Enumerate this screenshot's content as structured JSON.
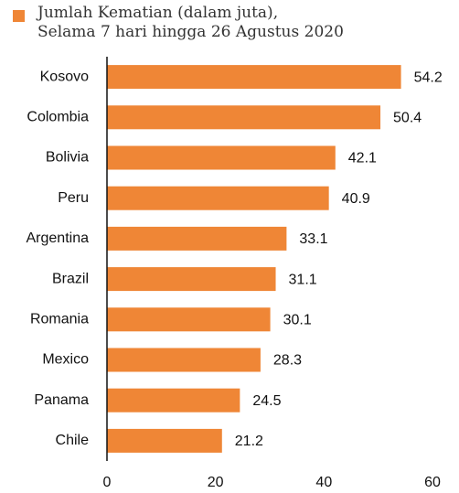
{
  "chart_data": {
    "type": "bar",
    "orientation": "horizontal",
    "categories": [
      "Kosovo",
      "Colombia",
      "Bolivia",
      "Peru",
      "Argentina",
      "Brazil",
      "Romania",
      "Mexico",
      "Panama",
      "Chile"
    ],
    "series": [
      {
        "name": "Jumlah Kematian (dalam juta),\nSelama 7 hari hingga 26 Agustus 2020",
        "color": "#ef8636",
        "values": [
          54.2,
          50.4,
          42.1,
          40.9,
          33.1,
          31.1,
          30.1,
          28.3,
          24.5,
          21.2
        ]
      }
    ],
    "xlim": [
      0,
      60
    ],
    "xticks": [
      0,
      20,
      40,
      60
    ],
    "grid": false,
    "legend": "top-left"
  }
}
